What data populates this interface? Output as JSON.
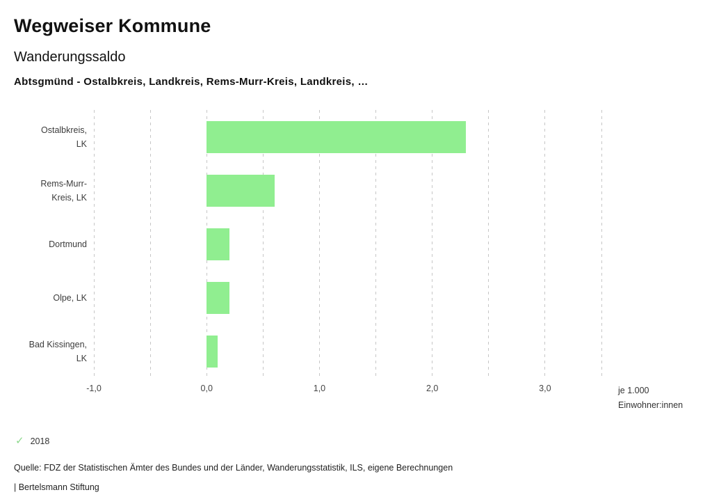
{
  "header": {
    "title": "Wegweiser Kommune",
    "subtitle": "Wanderungssaldo",
    "description": "Abtsgmünd - Ostalbkreis, Landkreis, Rems-Murr-Kreis, Landkreis, …"
  },
  "chart_data": {
    "type": "bar",
    "orientation": "horizontal",
    "title": "Wanderungssaldo",
    "xlabel": "je 1.000 Einwohner:innen",
    "categories": [
      "Ostalbkreis, LK",
      "Rems-Murr-Kreis, LK",
      "Dortmund",
      "Olpe, LK",
      "Bad Kissingen, LK"
    ],
    "category_label_lines": [
      [
        "Ostalbkreis,",
        "LK"
      ],
      [
        "Rems-Murr-",
        "Kreis, LK"
      ],
      [
        "Dortmund"
      ],
      [
        "Olpe, LK"
      ],
      [
        "Bad Kissingen,",
        "LK"
      ]
    ],
    "series_name": "2018",
    "values": [
      2.3,
      0.6,
      0.2,
      0.2,
      0.1
    ],
    "bar_color": "#90ee90",
    "xlim": [
      -1.0,
      3.5
    ],
    "grid": true,
    "grid_step": 0.5,
    "ticks": [
      {
        "value": -1.0,
        "label": "-1,0"
      },
      {
        "value": 0.0,
        "label": "0,0"
      },
      {
        "value": 1.0,
        "label": "1,0"
      },
      {
        "value": 2.0,
        "label": "2,0"
      },
      {
        "value": 3.0,
        "label": "3,0"
      }
    ],
    "unit_label_line1": "je 1.000",
    "unit_label_line2": "Einwohner:innen",
    "legend_position": "bottom-left"
  },
  "legend": {
    "check_icon": "✓",
    "check_color": "#8cd98c",
    "year": "2018"
  },
  "footer": {
    "source": "Quelle: FDZ der Statistischen Ämter des Bundes und der Länder, Wanderungsstatistik, ILS, eigene Berechnungen",
    "brand": "| Bertelsmann Stiftung"
  }
}
